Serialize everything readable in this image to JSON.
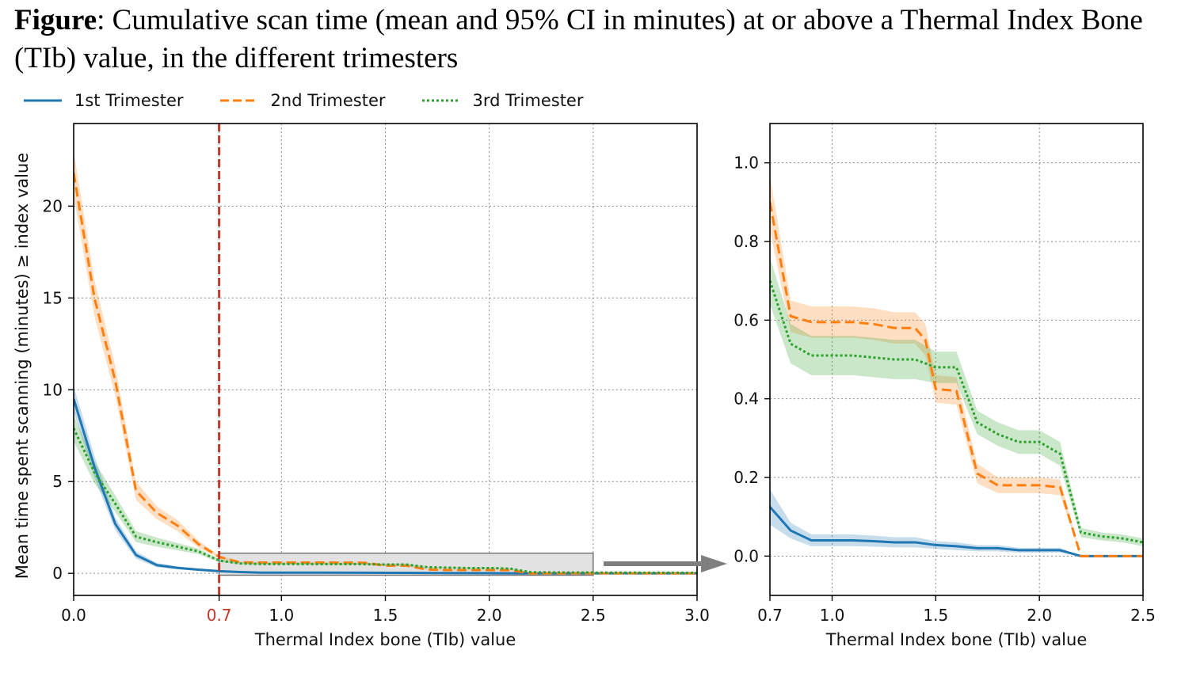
{
  "caption": {
    "lead": "Figure",
    "rest": ": Cumulative scan time (mean and 95% CI in minutes) at or above a Thermal Index Bone (TIb) value, in the different trimesters"
  },
  "legend": {
    "items": [
      {
        "label": "1st Trimester",
        "color": "#1f77b4",
        "style": "solid"
      },
      {
        "label": "2nd Trimester",
        "color": "#ff7f0e",
        "style": "dashed"
      },
      {
        "label": "3rd Trimester",
        "color": "#2ca02c",
        "style": "dotted"
      }
    ]
  },
  "chart_data": [
    {
      "type": "line",
      "panel": "left",
      "xlabel": "Thermal Index bone (TIb) value",
      "ylabel": "Mean time spent scanning (minutes) ≥ index value",
      "xlim": [
        0.0,
        3.0
      ],
      "ylim": [
        -1.2,
        24.5
      ],
      "xticks": [
        0.0,
        0.7,
        1.0,
        1.5,
        2.0,
        2.5,
        3.0
      ],
      "xtick_labels": [
        "0.0",
        "0.7",
        "1.0",
        "1.5",
        "2.0",
        "2.5",
        "3.0"
      ],
      "yticks": [
        0,
        5,
        10,
        15,
        20
      ],
      "ytick_labels": [
        "0",
        "5",
        "10",
        "15",
        "20"
      ],
      "grid": true,
      "threshold": {
        "x": 0.7,
        "label": "0.7",
        "color": "#c0392b"
      },
      "zoom_box": {
        "x": [
          0.7,
          2.5
        ],
        "y": [
          -0.1,
          1.1
        ]
      },
      "series": [
        {
          "name": "1st Trimester",
          "color": "#1f77b4",
          "style": "solid",
          "x": [
            0,
            0.1,
            0.2,
            0.3,
            0.4,
            0.5,
            0.6,
            0.7,
            0.8,
            0.9,
            1.0,
            1.2,
            1.4,
            1.6,
            1.8,
            2.0,
            2.2,
            2.4,
            2.6,
            2.8,
            3.0
          ],
          "y": [
            9.5,
            5.8,
            2.7,
            1.0,
            0.45,
            0.3,
            0.2,
            0.12,
            0.07,
            0.04,
            0.04,
            0.04,
            0.035,
            0.03,
            0.02,
            0.015,
            0.0,
            0.0,
            0.0,
            0.0,
            0.0
          ],
          "ci": [
            0.7,
            0.6,
            0.35,
            0.2,
            0.12,
            0.08,
            0.06,
            0.05,
            0.03,
            0.02,
            0.02,
            0.02,
            0.02,
            0.015,
            0.01,
            0.01,
            0.0,
            0.0,
            0.0,
            0.0,
            0.0
          ]
        },
        {
          "name": "2nd Trimester",
          "color": "#ff7f0e",
          "style": "dashed",
          "x": [
            0,
            0.1,
            0.2,
            0.3,
            0.4,
            0.5,
            0.6,
            0.7,
            0.8,
            0.9,
            1.0,
            1.2,
            1.4,
            1.5,
            1.6,
            1.7,
            1.8,
            2.0,
            2.1,
            2.2,
            2.4,
            2.6,
            2.8,
            3.0
          ],
          "y": [
            21.8,
            15.0,
            10.5,
            4.5,
            3.3,
            2.6,
            1.6,
            0.9,
            0.6,
            0.59,
            0.59,
            0.59,
            0.58,
            0.42,
            0.42,
            0.21,
            0.18,
            0.18,
            0.17,
            0.0,
            0.0,
            0.0,
            0.0,
            0.0
          ],
          "ci": [
            1.2,
            1.0,
            0.8,
            0.5,
            0.35,
            0.3,
            0.2,
            0.07,
            0.03,
            0.03,
            0.03,
            0.03,
            0.03,
            0.03,
            0.03,
            0.02,
            0.02,
            0.02,
            0.02,
            0.0,
            0.0,
            0.0,
            0.0,
            0.0
          ]
        },
        {
          "name": "3rd Trimester",
          "color": "#2ca02c",
          "style": "dotted",
          "x": [
            0,
            0.1,
            0.2,
            0.3,
            0.4,
            0.5,
            0.6,
            0.7,
            0.8,
            0.9,
            1.0,
            1.2,
            1.4,
            1.5,
            1.6,
            1.7,
            1.8,
            1.9,
            2.0,
            2.1,
            2.2,
            2.4,
            2.6,
            2.8,
            3.0
          ],
          "y": [
            7.9,
            5.5,
            3.8,
            2.0,
            1.7,
            1.45,
            1.2,
            0.7,
            0.54,
            0.51,
            0.51,
            0.505,
            0.5,
            0.48,
            0.48,
            0.34,
            0.31,
            0.29,
            0.29,
            0.26,
            0.06,
            0.045,
            0.04,
            0.035,
            0.03
          ],
          "ci": [
            0.7,
            0.6,
            0.45,
            0.3,
            0.25,
            0.2,
            0.15,
            0.08,
            0.05,
            0.05,
            0.05,
            0.05,
            0.05,
            0.04,
            0.04,
            0.03,
            0.03,
            0.03,
            0.03,
            0.03,
            0.01,
            0.01,
            0.01,
            0.01,
            0.01
          ]
        }
      ]
    },
    {
      "type": "line",
      "panel": "right",
      "xlabel": "Thermal Index bone (TIb) value",
      "ylabel": "",
      "xlim": [
        0.7,
        2.5
      ],
      "ylim": [
        -0.1,
        1.1
      ],
      "xticks": [
        0.7,
        1.0,
        1.5,
        2.0,
        2.5
      ],
      "xtick_labels": [
        "0.7",
        "1.0",
        "1.5",
        "2.0",
        "2.5"
      ],
      "yticks": [
        0.0,
        0.2,
        0.4,
        0.6,
        0.8,
        1.0
      ],
      "ytick_labels": [
        "0.0",
        "0.2",
        "0.4",
        "0.6",
        "0.8",
        "1.0"
      ],
      "grid": true,
      "series": [
        {
          "name": "1st Trimester",
          "color": "#1f77b4",
          "style": "solid",
          "x": [
            0.7,
            0.8,
            0.9,
            1.0,
            1.1,
            1.2,
            1.3,
            1.4,
            1.5,
            1.6,
            1.7,
            1.8,
            1.9,
            2.0,
            2.1,
            2.2,
            2.3,
            2.4,
            2.5
          ],
          "y": [
            0.125,
            0.065,
            0.04,
            0.04,
            0.04,
            0.038,
            0.035,
            0.035,
            0.028,
            0.025,
            0.02,
            0.02,
            0.015,
            0.015,
            0.015,
            0.0,
            0.0,
            0.0,
            0.0
          ],
          "ci": [
            0.045,
            0.02,
            0.015,
            0.015,
            0.015,
            0.014,
            0.013,
            0.013,
            0.01,
            0.01,
            0.008,
            0.008,
            0.006,
            0.006,
            0.006,
            0.0,
            0.0,
            0.0,
            0.0
          ]
        },
        {
          "name": "2nd Trimester",
          "color": "#ff7f0e",
          "style": "dashed",
          "x": [
            0.7,
            0.8,
            0.9,
            1.0,
            1.1,
            1.2,
            1.3,
            1.4,
            1.45,
            1.5,
            1.6,
            1.7,
            1.8,
            1.9,
            2.0,
            2.1,
            2.2,
            2.3,
            2.4,
            2.5
          ],
          "y": [
            0.9,
            0.61,
            0.595,
            0.595,
            0.595,
            0.59,
            0.58,
            0.58,
            0.55,
            0.425,
            0.42,
            0.21,
            0.18,
            0.18,
            0.18,
            0.175,
            0.0,
            0.0,
            0.0,
            0.0
          ],
          "ci": [
            0.07,
            0.04,
            0.04,
            0.04,
            0.04,
            0.04,
            0.04,
            0.04,
            0.04,
            0.035,
            0.035,
            0.025,
            0.02,
            0.02,
            0.02,
            0.02,
            0.0,
            0.0,
            0.0,
            0.0
          ]
        },
        {
          "name": "3rd Trimester",
          "color": "#2ca02c",
          "style": "dotted",
          "x": [
            0.7,
            0.8,
            0.9,
            1.0,
            1.1,
            1.2,
            1.3,
            1.4,
            1.5,
            1.6,
            1.7,
            1.8,
            1.9,
            2.0,
            2.1,
            2.2,
            2.3,
            2.4,
            2.5
          ],
          "y": [
            0.7,
            0.54,
            0.51,
            0.51,
            0.51,
            0.505,
            0.5,
            0.5,
            0.48,
            0.48,
            0.34,
            0.31,
            0.29,
            0.29,
            0.26,
            0.06,
            0.05,
            0.045,
            0.035
          ],
          "ci": [
            0.06,
            0.05,
            0.05,
            0.05,
            0.05,
            0.05,
            0.05,
            0.05,
            0.04,
            0.04,
            0.03,
            0.03,
            0.03,
            0.03,
            0.03,
            0.012,
            0.01,
            0.01,
            0.01
          ]
        }
      ]
    }
  ]
}
